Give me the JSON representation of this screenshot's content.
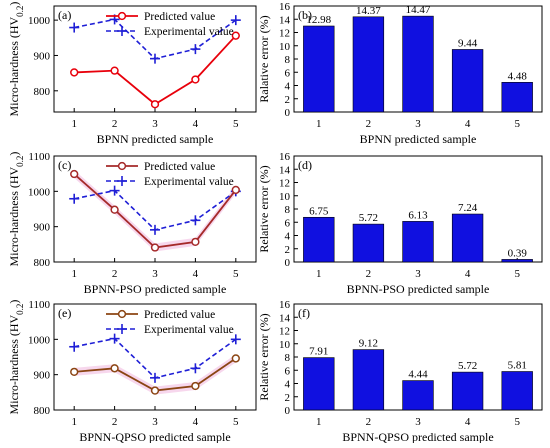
{
  "colors": {
    "predicted": "#e8000b",
    "predicted_pso": "#a52a2a",
    "predicted_qpso": "#8b4513",
    "experimental": "#1f1fd6",
    "bar": "#1010e0",
    "band": "#f3c6e6"
  },
  "chart_data": [
    {
      "panel": "(a)",
      "type": "line",
      "x": [
        1,
        2,
        3,
        4,
        5
      ],
      "xlabel": "BPNN predicted sample",
      "ylabel": "Micro-hardness (HV",
      "ylabel_sub": "0.2",
      "ylabel_close": ")",
      "ylim": [
        740,
        1040
      ],
      "yticks": [
        800,
        900,
        1000
      ],
      "series": [
        {
          "name": "Predicted value",
          "values": [
            852,
            857,
            762,
            832,
            956
          ]
        },
        {
          "name": "Experimental value",
          "values": [
            979,
            1002,
            891,
            918,
            1000
          ]
        }
      ]
    },
    {
      "panel": "(b)",
      "type": "bar",
      "categories": [
        "1",
        "2",
        "3",
        "4",
        "5"
      ],
      "values": [
        12.98,
        14.37,
        14.47,
        9.44,
        4.48
      ],
      "value_labels": [
        "12.98",
        "14.37",
        "14.47",
        "9.44",
        "4.48"
      ],
      "xlabel": "BPNN predicted sample",
      "ylabel": "Ralative error (%)",
      "ylim": [
        0,
        16
      ],
      "yticks": [
        0,
        2,
        4,
        6,
        8,
        10,
        12,
        14,
        16
      ]
    },
    {
      "panel": "(c)",
      "type": "line",
      "x": [
        1,
        2,
        3,
        4,
        5
      ],
      "xlabel": "BPNN-PSO predicted sample",
      "ylabel": "Micro-hardness (HV",
      "ylabel_sub": "0.2",
      "ylabel_close": ")",
      "ylim": [
        800,
        1100
      ],
      "yticks": [
        800,
        900,
        1000,
        1100
      ],
      "series": [
        {
          "name": "Predicted value",
          "values": [
            1049,
            948,
            841,
            857,
            1004
          ]
        },
        {
          "name": "Experimental value",
          "values": [
            979,
            1002,
            891,
            918,
            1000
          ]
        }
      ]
    },
    {
      "panel": "(d)",
      "type": "bar",
      "categories": [
        "1",
        "2",
        "3",
        "4",
        "5"
      ],
      "values": [
        6.75,
        5.72,
        6.13,
        7.24,
        0.39
      ],
      "value_labels": [
        "6.75",
        "5.72",
        "6.13",
        "7.24",
        "0.39"
      ],
      "xlabel": "BPNN-PSO predicted sample",
      "ylabel": "Relative error (%)",
      "ylim": [
        0,
        16
      ],
      "yticks": [
        0,
        2,
        4,
        6,
        8,
        10,
        12,
        14,
        16
      ]
    },
    {
      "panel": "(e)",
      "type": "line",
      "x": [
        1,
        2,
        3,
        4,
        5
      ],
      "xlabel": "BPNN-QPSO predicted sample",
      "ylabel": "Micro-hardness (HV",
      "ylabel_sub": "0.2",
      "ylabel_close": ")",
      "ylim": [
        800,
        1100
      ],
      "yticks": [
        800,
        900,
        1000,
        1100
      ],
      "series": [
        {
          "name": "Predicted value",
          "values": [
            908,
            918,
            855,
            868,
            946
          ]
        },
        {
          "name": "Experimental value",
          "values": [
            979,
            1002,
            891,
            918,
            1000
          ]
        }
      ]
    },
    {
      "panel": "(f)",
      "type": "bar",
      "categories": [
        "1",
        "2",
        "3",
        "4",
        "5"
      ],
      "values": [
        7.91,
        9.12,
        4.44,
        5.72,
        5.81
      ],
      "value_labels": [
        "7.91",
        "9.12",
        "4.44",
        "5.72",
        "5.81"
      ],
      "xlabel": "BPNN-QPSO predicted sample",
      "ylabel": "Relative error (%)",
      "ylim": [
        0,
        16
      ],
      "yticks": [
        0,
        2,
        4,
        6,
        8,
        10,
        12,
        14,
        16
      ]
    }
  ]
}
